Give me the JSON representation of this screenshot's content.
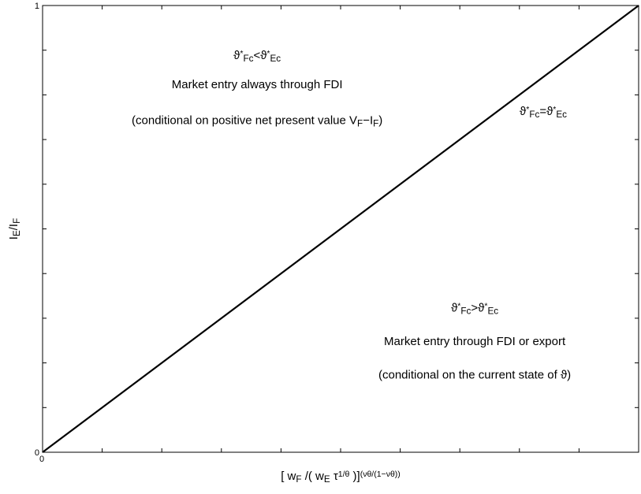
{
  "chart_data": {
    "type": "line",
    "title": "",
    "xlabel": {
      "parts": [
        {
          "t": "[ w"
        },
        {
          "t": "F",
          "sub": true
        },
        {
          "t": " /( w"
        },
        {
          "t": "E",
          "sub": true
        },
        {
          "t": " τ"
        },
        {
          "t": "1/θ",
          "sup": true
        },
        {
          "t": " )]"
        },
        {
          "t": "(νθ/(1−νθ))",
          "sup": true
        }
      ]
    },
    "ylabel": {
      "parts": [
        {
          "t": "I"
        },
        {
          "t": "E",
          "sub": true
        },
        {
          "t": "/I"
        },
        {
          "t": "F",
          "sub": true
        }
      ]
    },
    "xlim": [
      0,
      1
    ],
    "ylim": [
      0,
      1
    ],
    "x_tick_labels": [
      "0"
    ],
    "y_tick_labels": [
      "0",
      "1"
    ],
    "grid": false,
    "series": [
      {
        "x": [
          0,
          1
        ],
        "y": [
          0,
          1
        ],
        "color": "#000000"
      }
    ],
    "annotations": [
      {
        "id": "ann-fdi-condition",
        "at": [
          0.36,
          0.88
        ],
        "parts": [
          {
            "t": "ϑ"
          },
          {
            "t": "*",
            "sup": true
          },
          {
            "t": "Fc",
            "sub": true
          },
          {
            "t": "<ϑ"
          },
          {
            "t": "*",
            "sup": true
          },
          {
            "t": "Ec",
            "sub": true
          }
        ]
      },
      {
        "id": "ann-fdi-title",
        "at": [
          0.36,
          0.815
        ],
        "parts": [
          {
            "t": "Market entry always through FDI"
          }
        ]
      },
      {
        "id": "ann-fdi-note",
        "at": [
          0.36,
          0.735
        ],
        "parts": [
          {
            "t": "(conditional on positive net present value V"
          },
          {
            "t": "F",
            "sub": true
          },
          {
            "t": "−I"
          },
          {
            "t": "F",
            "sub": true
          },
          {
            "t": ")"
          }
        ]
      },
      {
        "id": "ann-diagonal",
        "at": [
          0.84,
          0.755
        ],
        "parts": [
          {
            "t": "ϑ"
          },
          {
            "t": "*",
            "sup": true
          },
          {
            "t": "Fc",
            "sub": true
          },
          {
            "t": "=ϑ"
          },
          {
            "t": "*",
            "sup": true
          },
          {
            "t": "Ec",
            "sub": true
          }
        ]
      },
      {
        "id": "ann-export-condition",
        "at": [
          0.725,
          0.315
        ],
        "parts": [
          {
            "t": "ϑ"
          },
          {
            "t": "*",
            "sup": true
          },
          {
            "t": "Fc",
            "sub": true
          },
          {
            "t": ">ϑ"
          },
          {
            "t": "*",
            "sup": true
          },
          {
            "t": "Ec",
            "sub": true
          }
        ]
      },
      {
        "id": "ann-export-title",
        "at": [
          0.725,
          0.24
        ],
        "parts": [
          {
            "t": "Market entry through FDI or export"
          }
        ]
      },
      {
        "id": "ann-export-note",
        "at": [
          0.725,
          0.165
        ],
        "parts": [
          {
            "t": "(conditional on the current state of ϑ)"
          }
        ]
      }
    ]
  }
}
